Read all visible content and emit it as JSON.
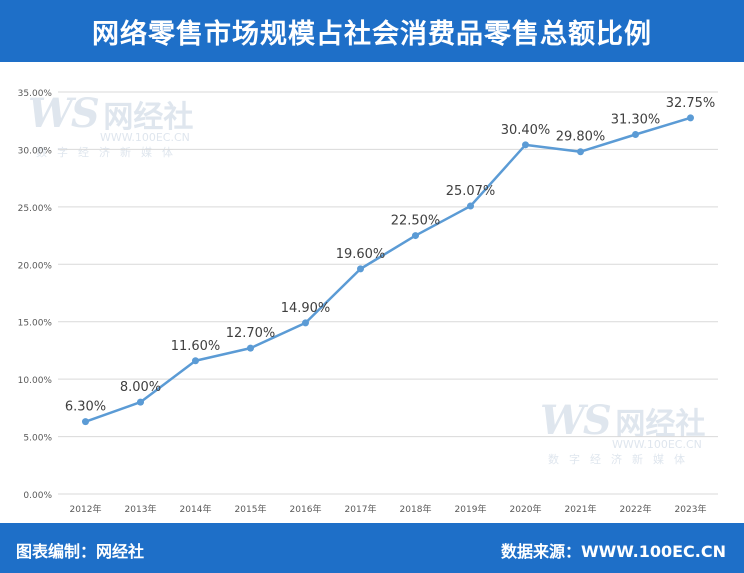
{
  "header": {
    "title": "网络零售市场规模占社会消费品零售总额比例"
  },
  "footer": {
    "editor": "图表编制：网经社",
    "source": "数据来源：WWW.100EC.CN"
  },
  "watermark": {
    "logo": "WS",
    "name": "网经社",
    "url": "WWW.100EC.CN",
    "tagline": "数字经济新媒体"
  },
  "colors": {
    "header_bg": "#1e6fc8",
    "line": "#5b9bd5",
    "grid": "#d9d9d9"
  },
  "chart_data": {
    "type": "line",
    "title": "网络零售市场规模占社会消费品零售总额比例",
    "xlabel": "",
    "ylabel": "",
    "categories": [
      "2012年",
      "2013年",
      "2014年",
      "2015年",
      "2016年",
      "2017年",
      "2018年",
      "2019年",
      "2020年",
      "2021年",
      "2022年",
      "2023年"
    ],
    "series": [
      {
        "values": [
          6.3,
          8.0,
          11.6,
          12.7,
          14.9,
          19.6,
          22.5,
          25.07,
          30.4,
          29.8,
          31.3,
          32.75
        ],
        "labels": [
          "6.30%",
          "8.00%",
          "11.60%",
          "12.70%",
          "14.90%",
          "19.60%",
          "22.50%",
          "25.07%",
          "30.40%",
          "29.80%",
          "31.30%",
          "32.75%"
        ]
      }
    ],
    "ylim": [
      0,
      35
    ],
    "yticks": [
      0,
      5,
      10,
      15,
      20,
      25,
      30,
      35
    ],
    "ytick_labels": [
      "0.00%",
      "5.00%",
      "10.00%",
      "15.00%",
      "20.00%",
      "25.00%",
      "30.00%",
      "35.00%"
    ],
    "grid": true,
    "legend": "none"
  }
}
